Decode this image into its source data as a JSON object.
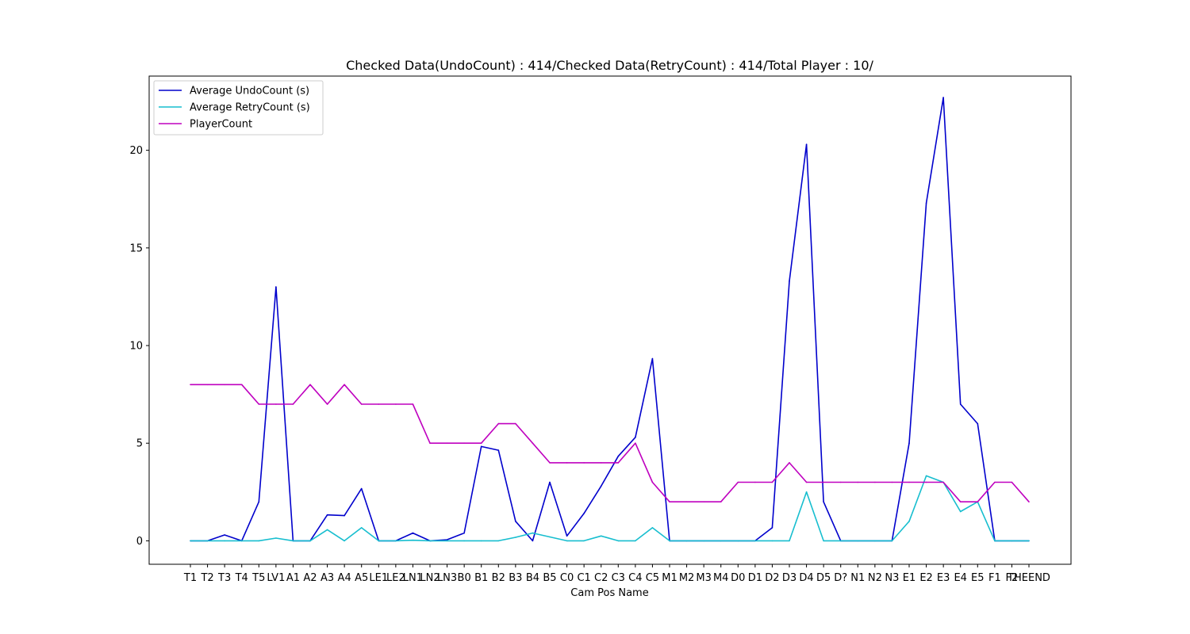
{
  "chart_data": {
    "type": "line",
    "title": "Checked Data(UndoCount) : 414/Checked Data(RetryCount) : 414/Total Player : 10/",
    "xlabel": "Cam Pos Name",
    "ylabel": "",
    "ylim": [
      -1.2,
      23.8
    ],
    "yticks": [
      0,
      5,
      10,
      15,
      20
    ],
    "grid": false,
    "legend_position": "top-left",
    "categories": [
      "T1",
      "T2",
      "T3",
      "T4",
      "T5",
      "LV1",
      "A1",
      "A2",
      "A3",
      "A4",
      "A5",
      "LE1",
      "LE2",
      "LN1",
      "LN2",
      "LN3",
      "B0",
      "B1",
      "B2",
      "B3",
      "B4",
      "B5",
      "C0",
      "C1",
      "C2",
      "C3",
      "C4",
      "C5",
      "M1",
      "M2",
      "M3",
      "M4",
      "D0",
      "D1",
      "D2",
      "D3",
      "D4",
      "D5",
      "D?",
      "N1",
      "N2",
      "N3",
      "E1",
      "E2",
      "E3",
      "E4",
      "E5",
      "F1",
      "F2",
      "THEEND"
    ],
    "series": [
      {
        "name": "Average UndoCount (s)",
        "color": "#0000cc",
        "values": [
          0,
          0,
          0.3,
          0,
          2,
          13,
          0,
          0,
          1.33,
          1.29,
          2.67,
          0,
          0,
          0.4,
          0,
          0.06,
          0.4,
          4.83,
          4.64,
          1,
          0,
          3,
          0.25,
          1.4,
          2.8,
          4.33,
          5.3,
          9.33,
          0,
          0,
          0,
          0,
          0,
          0,
          0.67,
          13.3,
          20.3,
          2,
          0,
          0,
          0,
          0,
          5,
          17.3,
          22.7,
          7,
          6,
          0,
          0,
          0
        ]
      },
      {
        "name": "Average RetryCount (s)",
        "color": "#17becf",
        "values": [
          0,
          0,
          0,
          0,
          0,
          0.14,
          0,
          0,
          0.57,
          0,
          0.67,
          0,
          0,
          0.03,
          0,
          0,
          0,
          0,
          0,
          0.18,
          0.4,
          0.2,
          0,
          0,
          0.25,
          0,
          0,
          0.67,
          0,
          0,
          0,
          0,
          0,
          0,
          0,
          0,
          2.5,
          0,
          0,
          0,
          0,
          0,
          1,
          3.33,
          3,
          1.5,
          2,
          0,
          0,
          0
        ]
      },
      {
        "name": "PlayerCount",
        "color": "#bf00bf",
        "values": [
          8,
          8,
          8,
          8,
          7,
          7,
          7,
          8,
          7,
          8,
          7,
          7,
          7,
          7,
          5,
          5,
          5,
          5,
          6,
          6,
          5,
          4,
          4,
          4,
          4,
          4,
          5,
          3,
          2,
          2,
          2,
          2,
          3,
          3,
          3,
          4,
          3,
          3,
          3,
          3,
          3,
          3,
          3,
          3,
          3,
          2,
          2,
          3,
          3,
          2
        ]
      }
    ]
  }
}
